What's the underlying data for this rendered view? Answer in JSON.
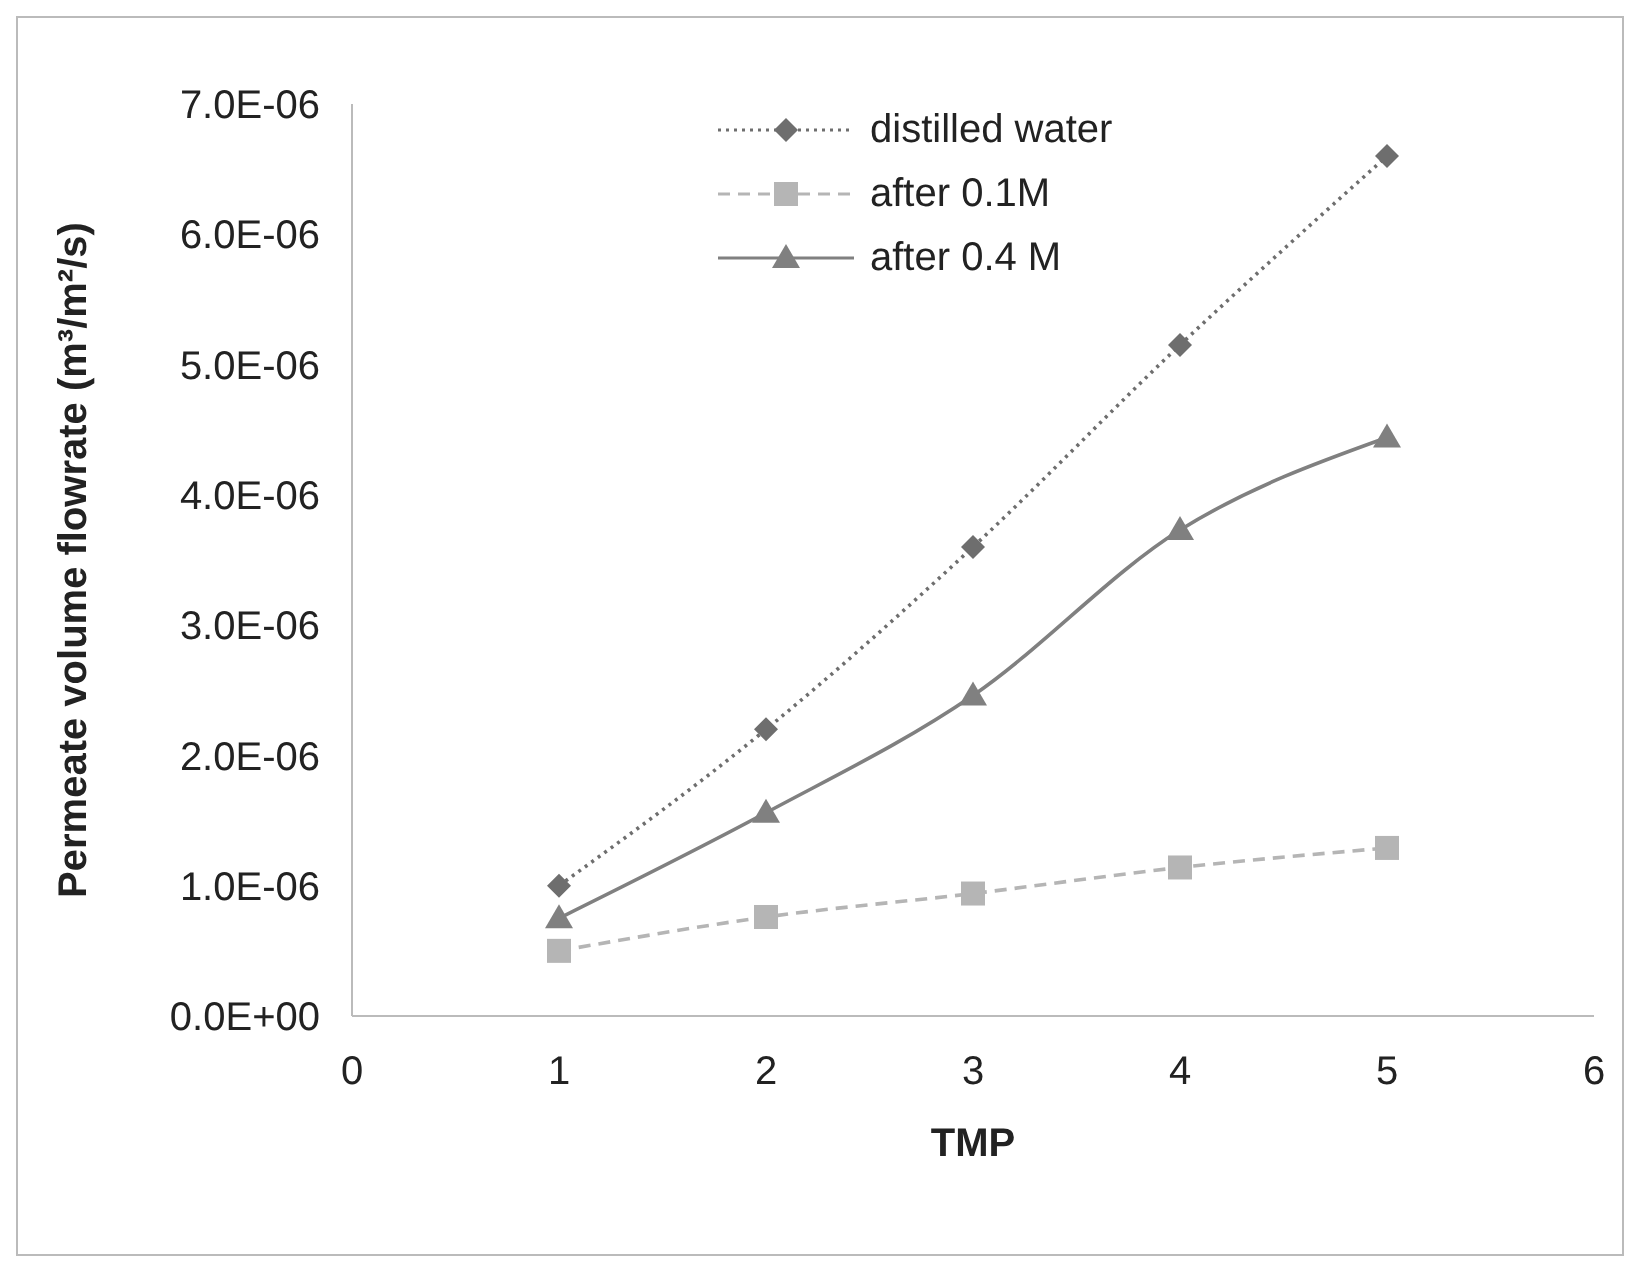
{
  "chart_data": {
    "type": "line",
    "xlabel": "TMP",
    "ylabel": "Permeate volume flowrate (m³/m²/s)",
    "x": [
      1,
      2,
      3,
      4,
      5
    ],
    "series": [
      {
        "name": "distilled water",
        "color": "#6e6e6e",
        "marker": "diamond",
        "line_style": "dotted",
        "values": [
          1e-06,
          2.2e-06,
          3.6e-06,
          5.15e-06,
          6.6e-06
        ]
      },
      {
        "name": "after 0.1M",
        "color": "#b5b5b5",
        "marker": "square",
        "line_style": "dashed",
        "values": [
          5e-07,
          7.6e-07,
          9.4e-07,
          1.14e-06,
          1.29e-06
        ]
      },
      {
        "name": "after 0.4 M",
        "color": "#808080",
        "marker": "triangle",
        "line_style": "solid",
        "values": [
          7.5e-07,
          1.56e-06,
          2.46e-06,
          3.73e-06,
          4.44e-06
        ]
      }
    ],
    "xlim": [
      0,
      6
    ],
    "xticks": [
      0,
      1,
      2,
      3,
      4,
      5,
      6
    ],
    "ylim": [
      0,
      7e-06
    ],
    "yticks": [
      {
        "value": 0,
        "label": "0.0E+00"
      },
      {
        "value": 1e-06,
        "label": "1.0E-06"
      },
      {
        "value": 2e-06,
        "label": "2.0E-06"
      },
      {
        "value": 3e-06,
        "label": "3.0E-06"
      },
      {
        "value": 4e-06,
        "label": "4.0E-06"
      },
      {
        "value": 5e-06,
        "label": "5.0E-06"
      },
      {
        "value": 6e-06,
        "label": "6.0E-06"
      },
      {
        "value": 7e-06,
        "label": "7.0E-06"
      }
    ],
    "grid": false,
    "legend": "top"
  }
}
